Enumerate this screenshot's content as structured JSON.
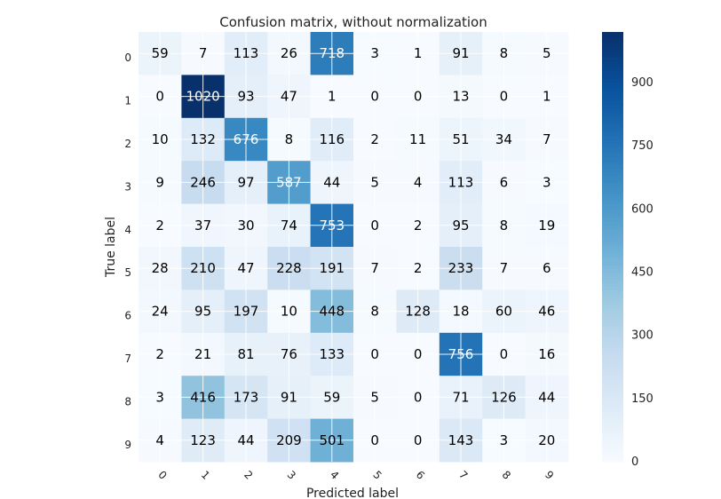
{
  "chart_data": {
    "type": "heatmap",
    "title": "Confusion matrix, without normalization",
    "xlabel": "Predicted label",
    "ylabel": "True label",
    "x_categories": [
      "0",
      "1",
      "2",
      "3",
      "4",
      "5",
      "6",
      "7",
      "8",
      "9"
    ],
    "y_categories": [
      "0",
      "1",
      "2",
      "3",
      "4",
      "5",
      "6",
      "7",
      "8",
      "9"
    ],
    "values": [
      [
        59,
        7,
        113,
        26,
        718,
        3,
        1,
        91,
        8,
        5
      ],
      [
        0,
        1020,
        93,
        47,
        1,
        0,
        0,
        13,
        0,
        1
      ],
      [
        10,
        132,
        676,
        8,
        116,
        2,
        11,
        51,
        34,
        7
      ],
      [
        9,
        246,
        97,
        587,
        44,
        5,
        4,
        113,
        6,
        3
      ],
      [
        2,
        37,
        30,
        74,
        753,
        0,
        2,
        95,
        8,
        19
      ],
      [
        28,
        210,
        47,
        228,
        191,
        7,
        2,
        233,
        7,
        6
      ],
      [
        24,
        95,
        197,
        10,
        448,
        8,
        128,
        18,
        60,
        46
      ],
      [
        2,
        21,
        81,
        76,
        133,
        0,
        0,
        756,
        0,
        16
      ],
      [
        3,
        416,
        173,
        91,
        59,
        5,
        0,
        71,
        126,
        44
      ],
      [
        4,
        123,
        44,
        209,
        501,
        0,
        0,
        143,
        3,
        20
      ]
    ],
    "colormap": "Blues",
    "vmin": 0,
    "vmax": 1020,
    "colorbar_ticks": [
      0,
      150,
      300,
      450,
      600,
      750,
      900
    ],
    "grid": true
  }
}
